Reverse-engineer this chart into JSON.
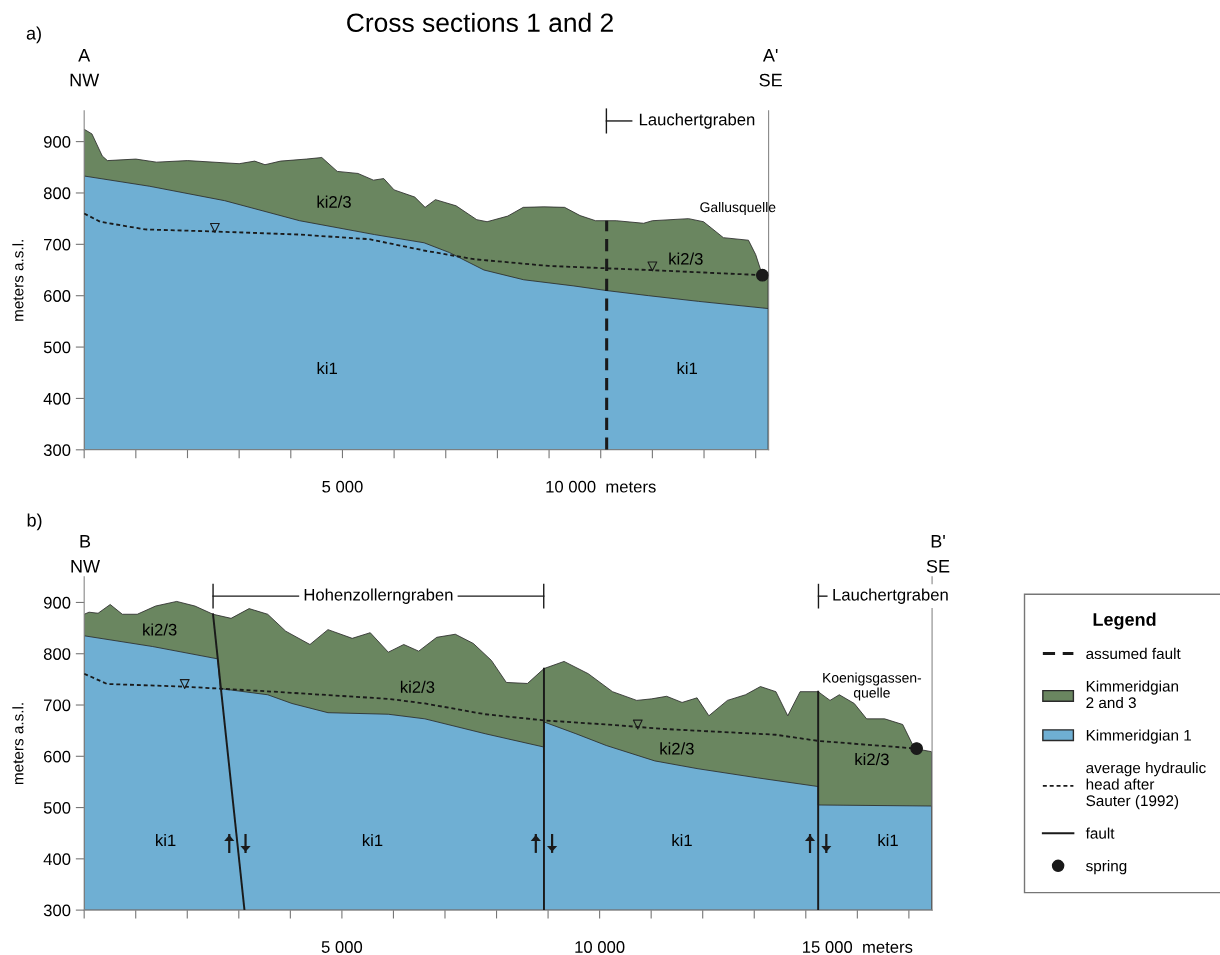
{
  "chart_data": [
    {
      "type": "area",
      "title": "Cross sections 1 and 2",
      "ylabel": "meters a.s.l.",
      "xlim": [
        0,
        13250
      ],
      "ylim": [
        300,
        960
      ],
      "xticks": [
        {
          "value": 0,
          "label": null
        },
        {
          "value": 1000,
          "label": null
        },
        {
          "value": 2000,
          "label": null
        },
        {
          "value": 3000,
          "label": null
        },
        {
          "value": 4000,
          "label": null
        },
        {
          "value": 5000,
          "label": "5 000"
        },
        {
          "value": 6000,
          "label": null
        },
        {
          "value": 7000,
          "label": null
        },
        {
          "value": 8000,
          "label": null
        },
        {
          "value": 9000,
          "label": null
        },
        {
          "value": 10000,
          "label": "10 000  meters"
        },
        {
          "value": 11000,
          "label": null
        },
        {
          "value": 12000,
          "label": null
        },
        {
          "value": 13000,
          "label": null
        }
      ],
      "yticks": [
        300,
        400,
        500,
        600,
        700,
        800,
        900
      ],
      "series": [
        {
          "type": "area",
          "color": "#6a8660",
          "x": [
            0,
            150,
            350,
            450,
            1000,
            1400,
            2000,
            3000,
            3300,
            3500,
            3800,
            4300,
            4600,
            4900,
            5300,
            5600,
            5800,
            6000,
            6400,
            6600,
            6800,
            7200,
            7600,
            7800,
            8200,
            8500,
            8900,
            9300,
            9600,
            9900,
            10300,
            10830,
            11000,
            11700,
            11990,
            12375,
            12860,
            13000,
            13130,
            13240
          ],
          "values": [
            924,
            915,
            872,
            863,
            866,
            860,
            863,
            857,
            862,
            855,
            862,
            866,
            869,
            842,
            838,
            825,
            828,
            806,
            792,
            772,
            787,
            775,
            748,
            744,
            755,
            772,
            773,
            772,
            756,
            746,
            746,
            741,
            746,
            750,
            744,
            713,
            708,
            680,
            640,
            638
          ]
        },
        {
          "type": "area",
          "color": "#6fafd3",
          "x": [
            0,
            1270,
            2720,
            4170,
            5620,
            6580,
            7070,
            7740,
            8510,
            9480,
            10115,
            10930,
            11890,
            13240
          ],
          "values": [
            833,
            813,
            785,
            746,
            719,
            703,
            684,
            650,
            631,
            619,
            610,
            600,
            589,
            575
          ]
        },
        {
          "type": "line",
          "color": "#1a1a1a",
          "line_style": "dotted",
          "marker": "none",
          "x": [
            0,
            309,
            1180,
            2530,
            4170,
            5520,
            6580,
            7550,
            8990,
            10930,
            13130
          ],
          "values": [
            760,
            744,
            729,
            725,
            719,
            710,
            688,
            671,
            658,
            650,
            640
          ]
        },
        {
          "type": "scatter",
          "color": "#1a1a1a",
          "marker": "triangle",
          "x": [
            2530,
            11000
          ],
          "values": [
            732,
            657
          ]
        },
        {
          "type": "line",
          "name": "assumed fault",
          "color": "#1a1a1a",
          "line_style": "dashed",
          "marker": "none",
          "x": [
            10115,
            10115
          ],
          "values": [
            300,
            746
          ]
        },
        {
          "type": "scatter",
          "color": "#1a1a1a",
          "marker": "circle",
          "x": [
            13130
          ],
          "values": [
            640
          ]
        }
      ],
      "annotations": [
        "a)",
        "A",
        "NW",
        "A'",
        "SE",
        "Lauchertgraben",
        "ki2/3",
        "ki1",
        "ki1",
        "ki2/3",
        "Gallusquelle"
      ]
    },
    {
      "type": "area",
      "ylabel": "meters a.s.l.",
      "xlim": [
        0,
        16450
      ],
      "ylim": [
        300,
        950
      ],
      "xticks": [
        {
          "value": 0,
          "label": null
        },
        {
          "value": 1000,
          "label": null
        },
        {
          "value": 2000,
          "label": null
        },
        {
          "value": 3000,
          "label": null
        },
        {
          "value": 4000,
          "label": null
        },
        {
          "value": 5000,
          "label": "5 000"
        },
        {
          "value": 6000,
          "label": null
        },
        {
          "value": 7000,
          "label": null
        },
        {
          "value": 8000,
          "label": null
        },
        {
          "value": 9000,
          "label": null
        },
        {
          "value": 10000,
          "label": "10 000"
        },
        {
          "value": 11000,
          "label": null
        },
        {
          "value": 12000,
          "label": null
        },
        {
          "value": 13000,
          "label": null
        },
        {
          "value": 14000,
          "label": null
        },
        {
          "value": 15000,
          "label": "15 000  meters"
        },
        {
          "value": 16000,
          "label": null
        }
      ],
      "yticks": [
        300,
        400,
        500,
        600,
        700,
        800,
        900
      ],
      "legend": "right",
      "legend_title": "Legend",
      "series": [
        {
          "type": "area",
          "name": "Kimmeridgian\n2 and 3",
          "color": "#6a8660",
          "x": [
            0,
            94,
            270,
            505,
            740,
            1030,
            1385,
            1795,
            2150,
            2500,
            2850,
            3200,
            3560,
            3910,
            4380,
            4730,
            5200,
            5550,
            5900,
            6200,
            6490,
            6840,
            7200,
            7550,
            7900,
            8190,
            8600,
            8920,
            9310,
            9780,
            10250,
            10720,
            11010,
            11300,
            11600,
            11890,
            12120,
            12480,
            12830,
            13120,
            13420,
            13650,
            13890,
            14240,
            14470,
            14650,
            14940,
            15180,
            15530,
            15880,
            16110,
            16440
          ],
          "values": [
            877,
            881,
            879,
            896,
            877,
            877,
            893,
            902,
            893,
            877,
            869,
            888,
            877,
            844,
            818,
            847,
            830,
            841,
            803,
            818,
            805,
            832,
            838,
            820,
            787,
            744,
            742,
            771,
            785,
            761,
            726,
            709,
            712,
            717,
            705,
            714,
            679,
            709,
            720,
            736,
            726,
            679,
            726,
            726,
            709,
            720,
            703,
            673,
            673,
            662,
            615,
            609
          ]
        },
        {
          "type": "area",
          "name": "Kimmeridgian 1",
          "color": "#6fafd3",
          "x": [
            0,
            1330,
            2590,
            2640,
            3560,
            4030,
            4730,
            5900,
            6610,
            7780,
            8920,
            8920,
            9540,
            10130,
            11070,
            11890,
            13060,
            14240,
            14240,
            16440
          ],
          "values": [
            835,
            814,
            790,
            732,
            720,
            703,
            685,
            682,
            673,
            644,
            618,
            667,
            644,
            621,
            591,
            576,
            558,
            541,
            505,
            503
          ]
        },
        {
          "type": "line",
          "name": "average hydraulic\nhead after\nSauter (1992)",
          "color": "#1a1a1a",
          "line_style": "dotted",
          "marker": "none",
          "x": [
            0,
            446,
            1910,
            3670,
            5900,
            6610,
            7780,
            8920,
            10130,
            11300,
            13420,
            14240,
            16150
          ],
          "values": [
            761,
            741,
            736,
            726,
            712,
            703,
            682,
            670,
            662,
            653,
            642,
            630,
            615
          ]
        },
        {
          "type": "scatter",
          "color": "#1a1a1a",
          "marker": "triangle",
          "x": [
            1950,
            10740
          ],
          "values": [
            741,
            662
          ]
        },
        {
          "type": "line",
          "name": "fault",
          "color": "#1a1a1a",
          "line_style": "solid",
          "marker": "none",
          "x": [
            2500,
            3110
          ],
          "values": [
            877,
            300
          ]
        },
        {
          "type": "line",
          "color": "#1a1a1a",
          "line_style": "solid",
          "marker": "none",
          "x": [
            8920,
            8920
          ],
          "values": [
            771,
            300
          ]
        },
        {
          "type": "line",
          "color": "#1a1a1a",
          "line_style": "solid",
          "marker": "none",
          "x": [
            14240,
            14240
          ],
          "values": [
            726,
            300
          ]
        },
        {
          "type": "scatter",
          "name": "spring",
          "color": "#1a1a1a",
          "marker": "circle",
          "x": [
            16150
          ],
          "values": [
            615
          ]
        }
      ],
      "annotations": [
        "b)",
        "B",
        "NW",
        "B'",
        "SE",
        "Hohenzollerngraben",
        "Lauchertgraben",
        "ki2/3",
        "ki2/3",
        "ki2/3",
        "ki2/3",
        "ki1",
        "ki1",
        "ki1",
        "ki1",
        "Koenigsgassen-\nquelle"
      ]
    }
  ]
}
